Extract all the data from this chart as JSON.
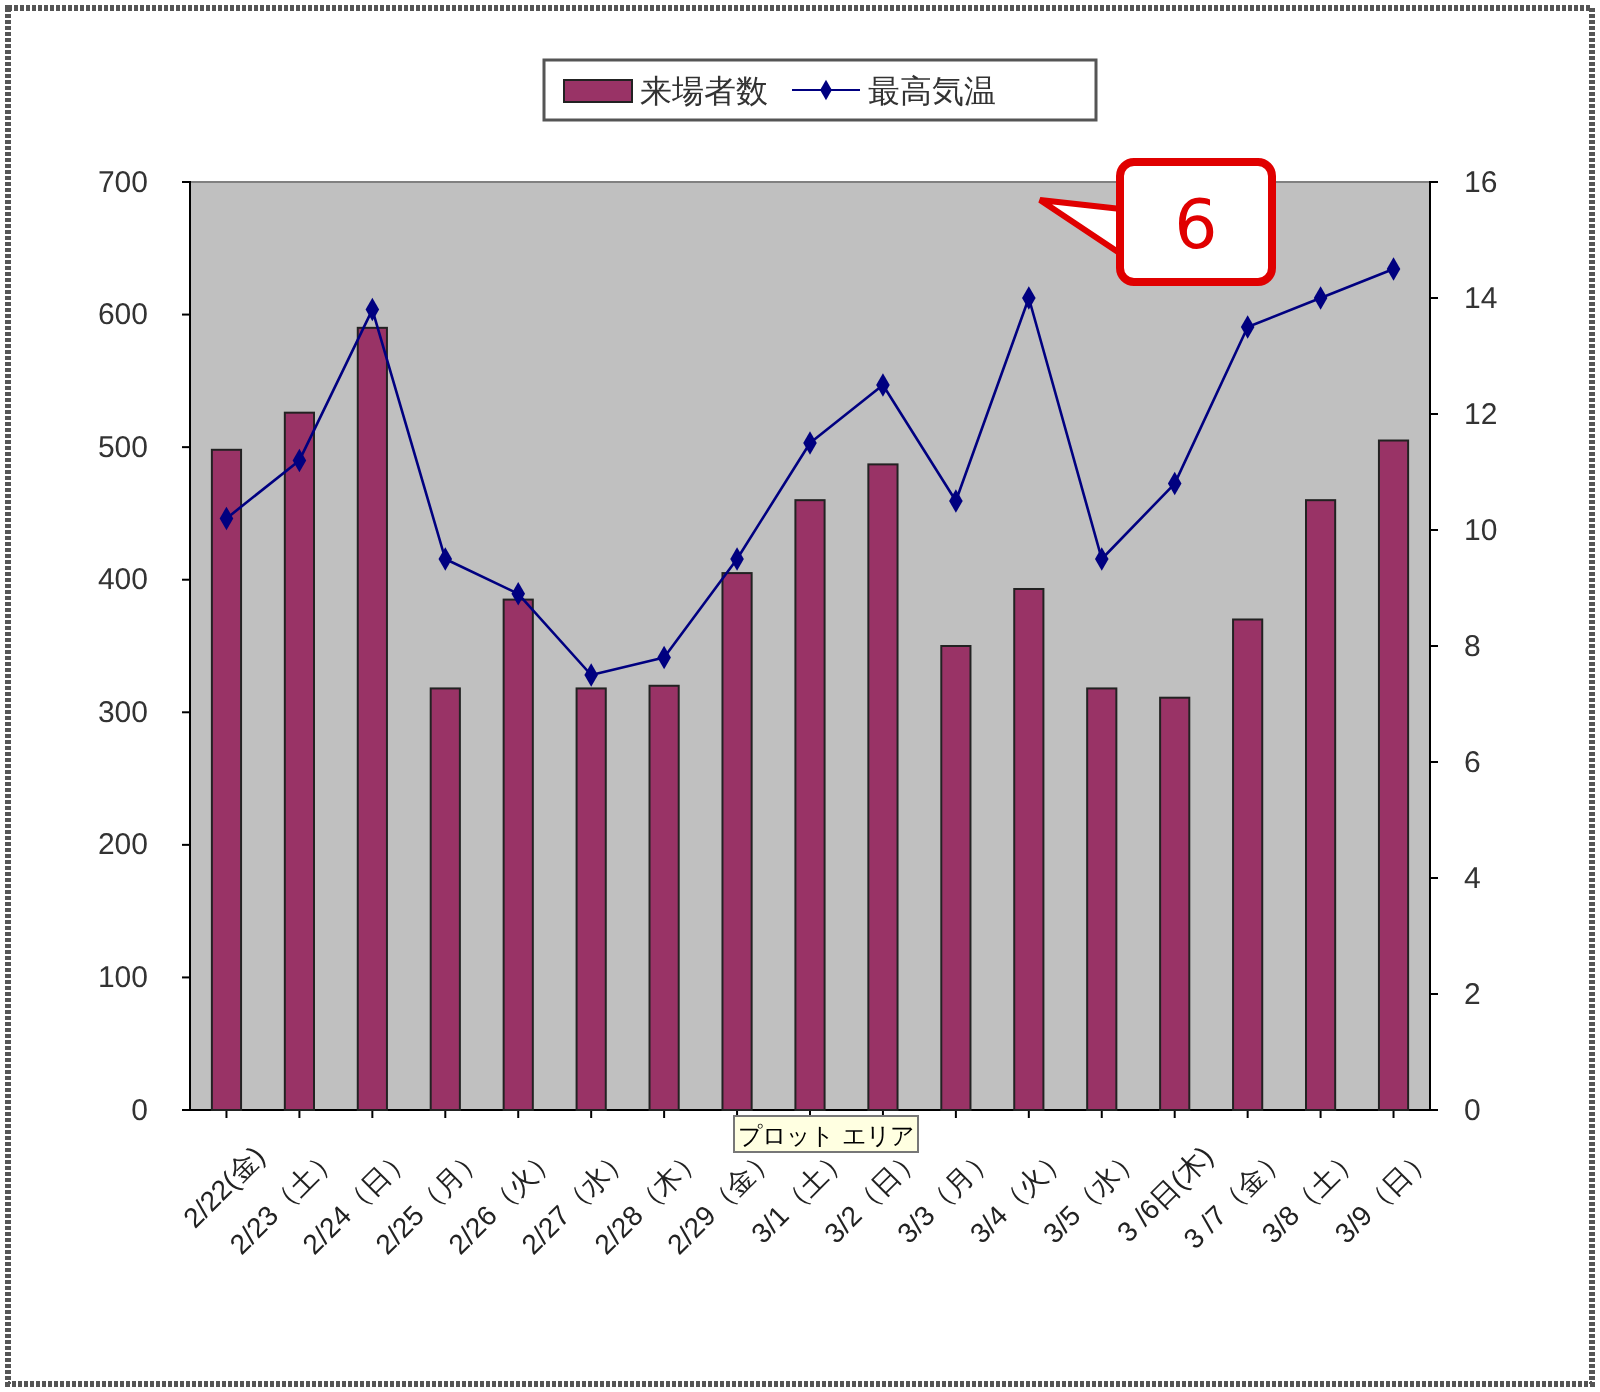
{
  "chart_data": {
    "type": "bar",
    "categories": [
      "2/22(金)",
      "2/23（土）",
      "2/24（日）",
      "2/25（月）",
      "2/26（火）",
      "2/27（水）",
      "2/28（木）",
      "2/29（金）",
      "3/1（土）",
      "3/2（日）",
      "3/3（月）",
      "3/4（火）",
      "3/5（水）",
      "3 /6日(木)",
      "3 /7（金）",
      "3/8（土）",
      "3/9（日）"
    ],
    "series": [
      {
        "name": "来場者数",
        "color": "#993366",
        "values": [
          498,
          526,
          590,
          318,
          385,
          318,
          320,
          405,
          460,
          487,
          350,
          393,
          318,
          311,
          370,
          460,
          505
        ]
      },
      {
        "name": "最高気温",
        "type": "line",
        "axis": "y2",
        "color": "#000080",
        "values": [
          10.2,
          11.2,
          13.8,
          9.5,
          8.9,
          7.5,
          7.8,
          9.5,
          11.5,
          12.5,
          10.5,
          14,
          9.5,
          10.8,
          13.5,
          14,
          14.5
        ]
      }
    ],
    "ylim": [
      0,
      700
    ],
    "yticks": [
      0,
      100,
      200,
      300,
      400,
      500,
      600,
      700
    ],
    "y2lim": [
      0,
      16
    ],
    "y2ticks": [
      0,
      2,
      4,
      6,
      8,
      10,
      12,
      14,
      16
    ],
    "grid": false,
    "legend": "top",
    "marker": "diamond",
    "line_style": "solid",
    "annotations": [
      "6",
      "プロット エリア"
    ]
  }
}
